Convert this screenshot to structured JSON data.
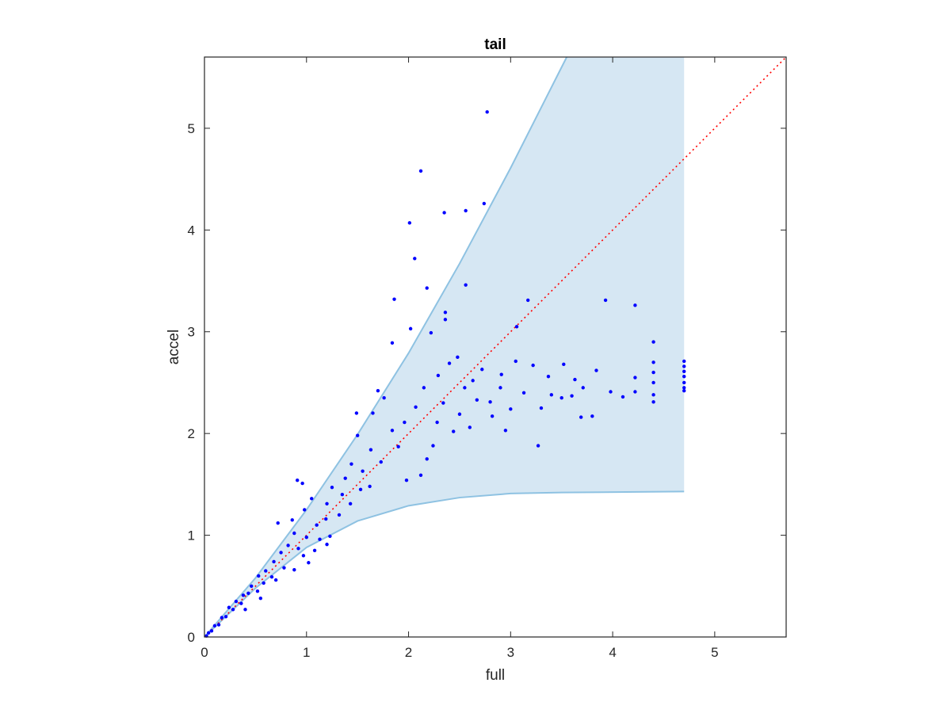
{
  "chart_data": {
    "type": "scatter",
    "title": "tail",
    "xlabel": "full",
    "ylabel": "accel",
    "xlim": [
      0,
      5.7
    ],
    "ylim": [
      0,
      5.7
    ],
    "x_ticks": [
      0,
      1,
      2,
      3,
      4,
      5
    ],
    "y_ticks": [
      0,
      1,
      2,
      3,
      4,
      5
    ],
    "x_tick_labels": [
      "0",
      "1",
      "2",
      "3",
      "4",
      "5"
    ],
    "y_tick_labels": [
      "0",
      "1",
      "2",
      "3",
      "4",
      "5"
    ],
    "grid": false,
    "colors": {
      "points": "#0000ff",
      "band_fill": "#d6e7f3",
      "band_edge": "#8ec2e2",
      "reference_line": "#ff0000"
    },
    "reference_line": {
      "style": "dotted",
      "from": [
        0,
        0
      ],
      "to": [
        5.7,
        5.7
      ]
    },
    "band": {
      "upper": [
        [
          0,
          0
        ],
        [
          0.5,
          0.58
        ],
        [
          1.0,
          1.25
        ],
        [
          1.5,
          1.99
        ],
        [
          2.0,
          2.79
        ],
        [
          2.5,
          3.67
        ],
        [
          3.0,
          4.61
        ],
        [
          3.55,
          5.7
        ],
        [
          4.7,
          5.7
        ]
      ],
      "lower": [
        [
          0,
          0
        ],
        [
          0.5,
          0.48
        ],
        [
          1.0,
          0.88
        ],
        [
          1.5,
          1.14
        ],
        [
          2.0,
          1.29
        ],
        [
          2.5,
          1.37
        ],
        [
          3.0,
          1.41
        ],
        [
          3.5,
          1.42
        ],
        [
          4.7,
          1.43
        ]
      ]
    },
    "points": [
      [
        2.77,
        5.16
      ],
      [
        2.12,
        4.58
      ],
      [
        2.01,
        4.07
      ],
      [
        2.35,
        4.17
      ],
      [
        2.56,
        4.19
      ],
      [
        2.74,
        4.26
      ],
      [
        2.06,
        3.72
      ],
      [
        2.18,
        3.43
      ],
      [
        2.56,
        3.46
      ],
      [
        1.86,
        3.32
      ],
      [
        2.36,
        3.19
      ],
      [
        2.36,
        3.12
      ],
      [
        3.17,
        3.31
      ],
      [
        3.93,
        3.31
      ],
      [
        4.22,
        3.26
      ],
      [
        2.02,
        3.03
      ],
      [
        1.84,
        2.89
      ],
      [
        2.22,
        2.99
      ],
      [
        3.06,
        3.05
      ],
      [
        2.48,
        2.75
      ],
      [
        2.63,
        2.52
      ],
      [
        2.72,
        2.63
      ],
      [
        2.91,
        2.58
      ],
      [
        3.05,
        2.71
      ],
      [
        3.22,
        2.67
      ],
      [
        3.37,
        2.56
      ],
      [
        3.52,
        2.68
      ],
      [
        3.63,
        2.53
      ],
      [
        3.71,
        2.45
      ],
      [
        3.84,
        2.62
      ],
      [
        3.98,
        2.41
      ],
      [
        4.1,
        2.36
      ],
      [
        4.22,
        2.55
      ],
      [
        4.22,
        2.41
      ],
      [
        3.4,
        2.38
      ],
      [
        3.5,
        2.35
      ],
      [
        3.6,
        2.37
      ],
      [
        3.69,
        2.16
      ],
      [
        3.8,
        2.17
      ],
      [
        3.3,
        2.25
      ],
      [
        3.27,
        1.88
      ],
      [
        2.95,
        2.03
      ],
      [
        2.82,
        2.17
      ],
      [
        2.6,
        2.06
      ],
      [
        2.44,
        2.02
      ],
      [
        2.34,
        2.3
      ],
      [
        2.24,
        1.88
      ],
      [
        2.18,
        1.75
      ],
      [
        2.12,
        1.59
      ],
      [
        1.98,
        1.54
      ],
      [
        1.7,
        2.42
      ],
      [
        1.76,
        2.35
      ],
      [
        1.65,
        2.2
      ],
      [
        1.49,
        2.2
      ],
      [
        1.5,
        1.98
      ],
      [
        1.96,
        2.11
      ],
      [
        2.07,
        2.26
      ],
      [
        2.29,
        2.57
      ],
      [
        2.15,
        2.45
      ],
      [
        2.4,
        2.69
      ],
      [
        2.55,
        2.45
      ],
      [
        2.67,
        2.33
      ],
      [
        2.9,
        2.45
      ],
      [
        3.13,
        2.4
      ],
      [
        3.0,
        2.24
      ],
      [
        2.8,
        2.31
      ],
      [
        2.5,
        2.19
      ],
      [
        2.28,
        2.11
      ],
      [
        1.84,
        2.03
      ],
      [
        1.9,
        1.87
      ],
      [
        1.73,
        1.72
      ],
      [
        1.63,
        1.84
      ],
      [
        1.55,
        1.63
      ],
      [
        1.44,
        1.7
      ],
      [
        1.38,
        1.56
      ],
      [
        1.35,
        1.4
      ],
      [
        1.43,
        1.31
      ],
      [
        1.53,
        1.45
      ],
      [
        1.62,
        1.48
      ],
      [
        1.32,
        1.2
      ],
      [
        1.2,
        1.31
      ],
      [
        1.25,
        1.47
      ],
      [
        1.19,
        1.16
      ],
      [
        1.1,
        1.1
      ],
      [
        1.05,
        1.36
      ],
      [
        0.98,
        1.25
      ],
      [
        0.88,
        1.02
      ],
      [
        0.92,
        0.87
      ],
      [
        1.0,
        0.98
      ],
      [
        1.13,
        0.96
      ],
      [
        1.23,
        0.99
      ],
      [
        1.2,
        0.91
      ],
      [
        1.08,
        0.85
      ],
      [
        0.97,
        0.8
      ],
      [
        0.82,
        0.9
      ],
      [
        0.75,
        0.83
      ],
      [
        0.78,
        0.68
      ],
      [
        0.68,
        0.74
      ],
      [
        0.66,
        0.59
      ],
      [
        0.6,
        0.65
      ],
      [
        0.58,
        0.53
      ],
      [
        0.53,
        0.6
      ],
      [
        0.52,
        0.45
      ],
      [
        0.46,
        0.5
      ],
      [
        0.43,
        0.43
      ],
      [
        0.38,
        0.41
      ],
      [
        0.36,
        0.33
      ],
      [
        0.31,
        0.35
      ],
      [
        0.28,
        0.27
      ],
      [
        0.24,
        0.29
      ],
      [
        0.21,
        0.2
      ],
      [
        0.17,
        0.19
      ],
      [
        0.14,
        0.12
      ],
      [
        0.1,
        0.11
      ],
      [
        0.07,
        0.06
      ],
      [
        0.04,
        0.04
      ],
      [
        0.02,
        0.01
      ],
      [
        0.72,
        1.12
      ],
      [
        0.86,
        1.15
      ],
      [
        0.96,
        1.51
      ],
      [
        0.91,
        1.54
      ],
      [
        1.02,
        0.73
      ],
      [
        0.88,
        0.66
      ],
      [
        0.7,
        0.56
      ],
      [
        0.55,
        0.38
      ],
      [
        0.4,
        0.27
      ],
      [
        4.4,
        2.9
      ],
      [
        4.4,
        2.7
      ],
      [
        4.4,
        2.6
      ],
      [
        4.4,
        2.5
      ],
      [
        4.4,
        2.38
      ],
      [
        4.4,
        2.31
      ],
      [
        4.7,
        2.71
      ],
      [
        4.7,
        2.66
      ],
      [
        4.7,
        2.61
      ],
      [
        4.7,
        2.56
      ],
      [
        4.7,
        2.5
      ],
      [
        4.7,
        2.45
      ],
      [
        4.7,
        2.42
      ]
    ]
  }
}
